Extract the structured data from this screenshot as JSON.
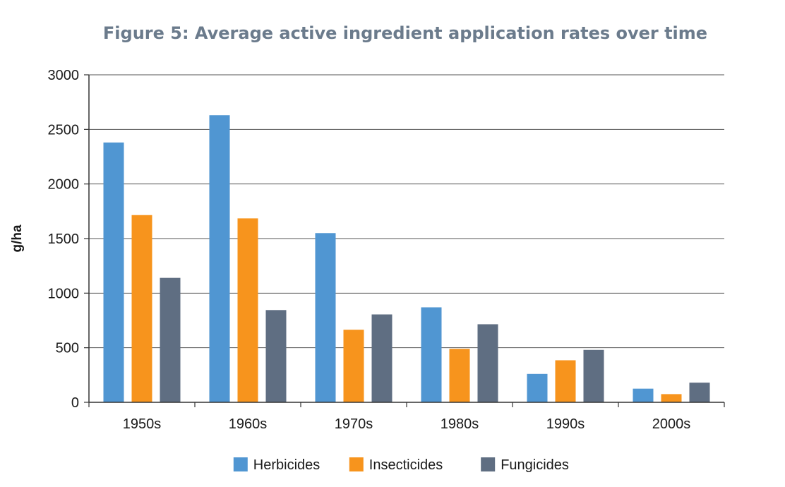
{
  "chart_data": {
    "type": "bar",
    "title": "Figure 5: Average active ingredient application rates over time",
    "xlabel": "",
    "ylabel": "g/ha",
    "categories": [
      "1950s",
      "1960s",
      "1970s",
      "1980s",
      "1990s",
      "2000s"
    ],
    "series": [
      {
        "name": "Herbicides",
        "color": "#5096d2",
        "values": [
          2380,
          2630,
          1550,
          870,
          260,
          125
        ]
      },
      {
        "name": "Insecticides",
        "color": "#f7941d",
        "values": [
          1715,
          1685,
          665,
          490,
          385,
          75
        ]
      },
      {
        "name": "Fungicides",
        "color": "#5f6e82",
        "values": [
          1140,
          845,
          805,
          715,
          480,
          180
        ]
      }
    ],
    "ylim": [
      0,
      3000
    ],
    "yticks": [
      0,
      500,
      1000,
      1500,
      2000,
      2500,
      3000
    ],
    "grid": true,
    "legend_position": "bottom-center"
  }
}
